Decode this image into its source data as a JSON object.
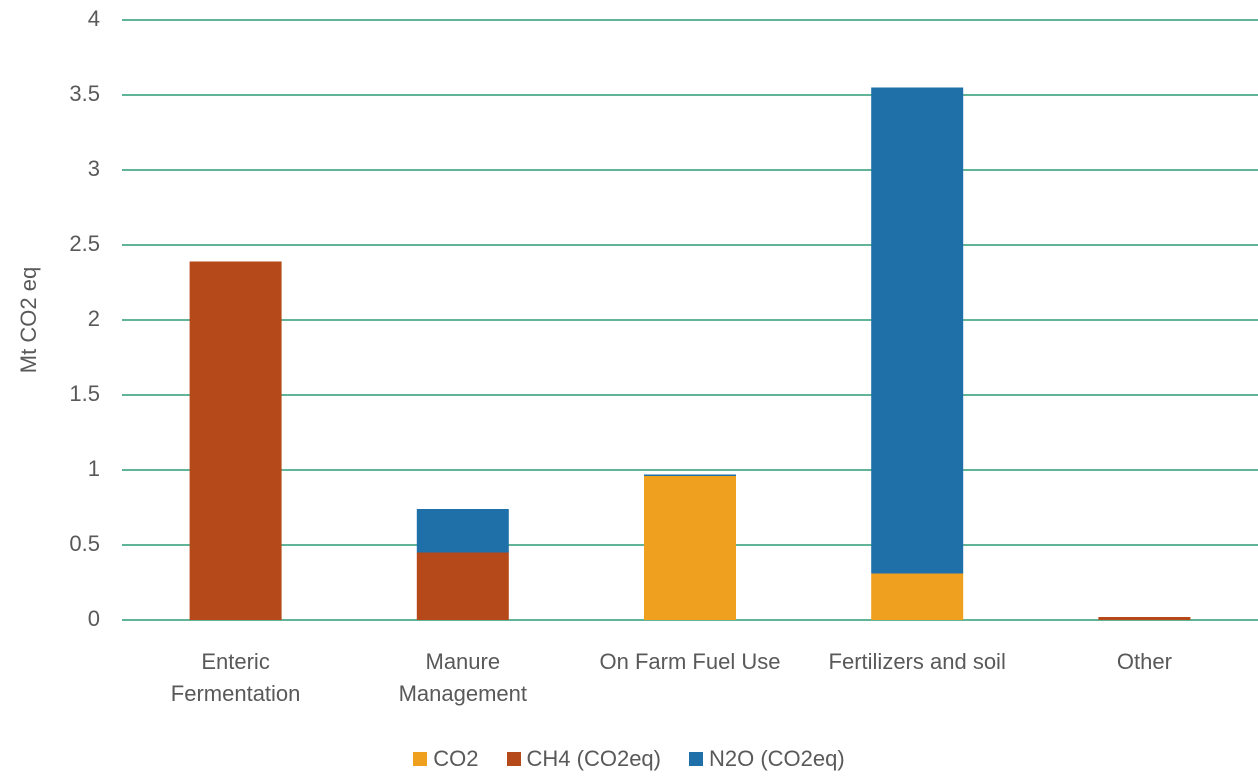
{
  "chart_data": {
    "type": "stacked_bar",
    "y_label": "Mt CO2 eq",
    "categories": [
      "Enteric Fermentation",
      "Manure Management",
      "On Farm Fuel Use",
      "Fertilizers and soil",
      "Other"
    ],
    "series": [
      {
        "name": "CO2",
        "color": "#f0a01f",
        "values": [
          0,
          0,
          0.96,
          0.31,
          0
        ]
      },
      {
        "name": "CH4 (CO2eq)",
        "color": "#b5491a",
        "values": [
          2.39,
          0.45,
          0,
          0,
          0.02
        ]
      },
      {
        "name": "N2O (CO2eq)",
        "color": "#1f6fa8",
        "values": [
          0,
          0.29,
          0.01,
          3.24,
          0
        ]
      }
    ],
    "ylim": [
      0,
      4
    ],
    "yticks": [
      0,
      0.5,
      1,
      1.5,
      2,
      2.5,
      3,
      3.5,
      4
    ],
    "grid": true,
    "grid_color": "#2e9c74",
    "legend": "bottom"
  }
}
